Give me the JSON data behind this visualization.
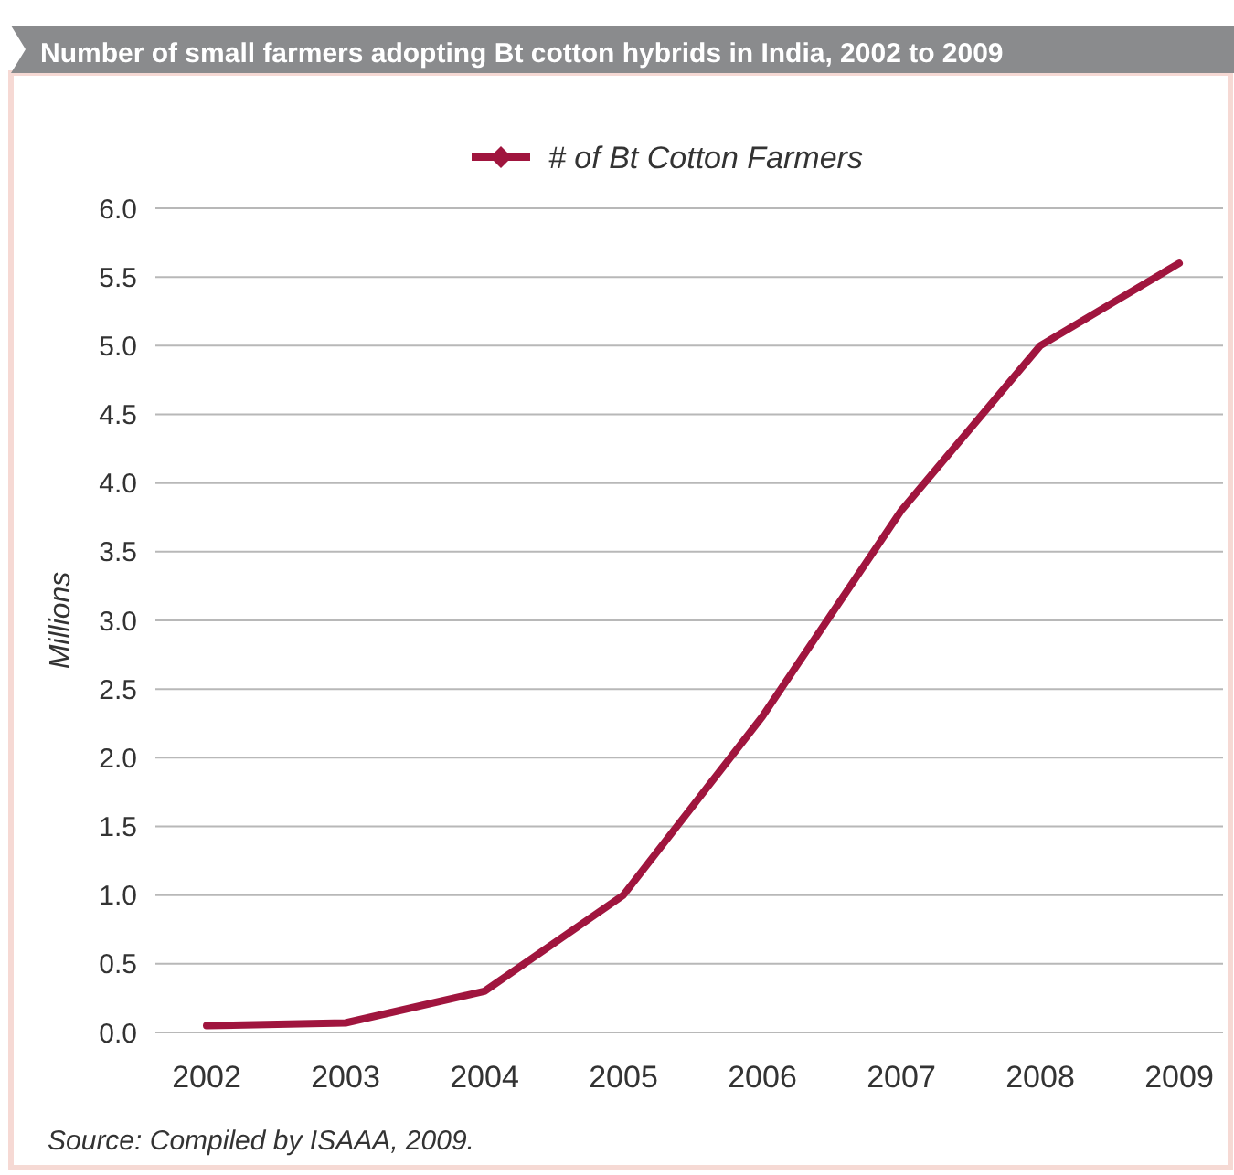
{
  "chart_data": {
    "type": "line",
    "title": "Number of small farmers adopting Bt cotton hybrids in India, 2002 to 2009",
    "ylabel": "Millions",
    "annotations": [
      "Source:  Compiled by ISAAA, 2009."
    ],
    "categories": [
      "2002",
      "2003",
      "2004",
      "2005",
      "2006",
      "2007",
      "2008",
      "2009"
    ],
    "series": [
      {
        "name": "# of Bt Cotton Farmers",
        "color": "#a0153e",
        "values": [
          0.05,
          0.07,
          0.3,
          1.0,
          2.3,
          3.8,
          5.0,
          5.6
        ]
      }
    ],
    "ylim": [
      0,
      6
    ],
    "yticks": [
      {
        "value": 0,
        "label": "0.0"
      },
      {
        "value": 0.5,
        "label": "0.5"
      },
      {
        "value": 1,
        "label": "1.0"
      },
      {
        "value": 1.5,
        "label": "1.5"
      },
      {
        "value": 2,
        "label": "2.0"
      },
      {
        "value": 2.5,
        "label": "2.5"
      },
      {
        "value": 3,
        "label": "3.0"
      },
      {
        "value": 3.5,
        "label": "3.5"
      },
      {
        "value": 4,
        "label": "4.0"
      },
      {
        "value": 4.5,
        "label": "4.5"
      },
      {
        "value": 5,
        "label": "5.0"
      },
      {
        "value": 5.5,
        "label": "5.5"
      },
      {
        "value": 6,
        "label": "6.0"
      }
    ],
    "grid": "y",
    "legend": "top",
    "line_style": "solid"
  }
}
